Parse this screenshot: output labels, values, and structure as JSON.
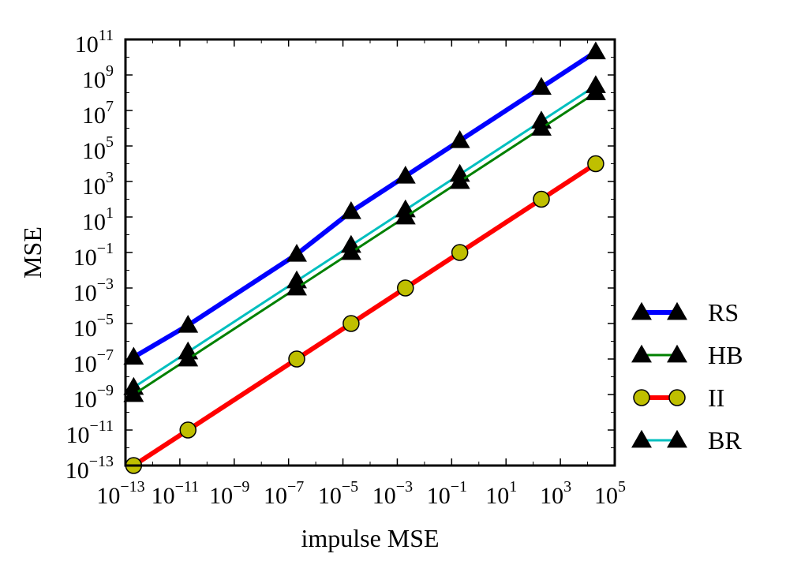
{
  "chart_data": {
    "type": "line",
    "xscale": "log",
    "yscale": "log",
    "xlabel": "impulse MSE",
    "ylabel": "MSE",
    "xlim_exp": [
      -13,
      5
    ],
    "ylim_exp": [
      -13,
      11
    ],
    "x_ticks": [
      "-13",
      "-11",
      "-9",
      "-7",
      "-5",
      "-3",
      "-1",
      "1",
      "3",
      "5"
    ],
    "y_ticks": [
      "-13",
      "-11",
      "-9",
      "-7",
      "-5",
      "-3",
      "-1",
      "1",
      "3",
      "5",
      "7",
      "9",
      "11"
    ],
    "tick_base": "10",
    "grid": false,
    "legend_position": "outside-right",
    "series": [
      {
        "name": "RS",
        "color": "#0000ff",
        "line": "thick",
        "marker": "triangle",
        "marker_color": "#000000",
        "points": [
          [
            -12.7,
            -6.9
          ],
          [
            -10.7,
            -5.1
          ],
          [
            -6.7,
            -1.1
          ],
          [
            -4.7,
            1.3
          ],
          [
            -2.7,
            3.3
          ],
          [
            -0.7,
            5.3
          ],
          [
            2.3,
            8.3
          ],
          [
            4.3,
            10.3
          ]
        ]
      },
      {
        "name": "HB",
        "color": "#008000",
        "line": "thin",
        "marker": "triangle",
        "marker_color": "#000000",
        "points": [
          [
            -12.7,
            -9.0
          ],
          [
            -10.7,
            -7.0
          ],
          [
            -6.7,
            -3.0
          ],
          [
            -4.7,
            -1.0
          ],
          [
            -2.7,
            1.0
          ],
          [
            -0.7,
            3.0
          ],
          [
            2.3,
            6.0
          ],
          [
            4.3,
            8.0
          ]
        ]
      },
      {
        "name": "II",
        "color": "#ff0000",
        "line": "thick",
        "marker": "circle",
        "marker_color": "#bfbf00",
        "points": [
          [
            -12.7,
            -13.0
          ],
          [
            -10.7,
            -11.0
          ],
          [
            -6.7,
            -7.0
          ],
          [
            -4.7,
            -5.0
          ],
          [
            -2.7,
            -3.0
          ],
          [
            -0.7,
            -1.0
          ],
          [
            2.3,
            2.0
          ],
          [
            4.3,
            4.0
          ]
        ]
      },
      {
        "name": "BR",
        "color": "#00bfbf",
        "line": "thin",
        "marker": "triangle",
        "marker_color": "#000000",
        "points": [
          [
            -12.7,
            -8.6
          ],
          [
            -10.7,
            -6.6
          ],
          [
            -6.7,
            -2.6
          ],
          [
            -4.7,
            -0.6
          ],
          [
            -2.7,
            1.4
          ],
          [
            -0.7,
            3.4
          ],
          [
            2.3,
            6.4
          ],
          [
            4.3,
            8.4
          ]
        ]
      }
    ]
  }
}
